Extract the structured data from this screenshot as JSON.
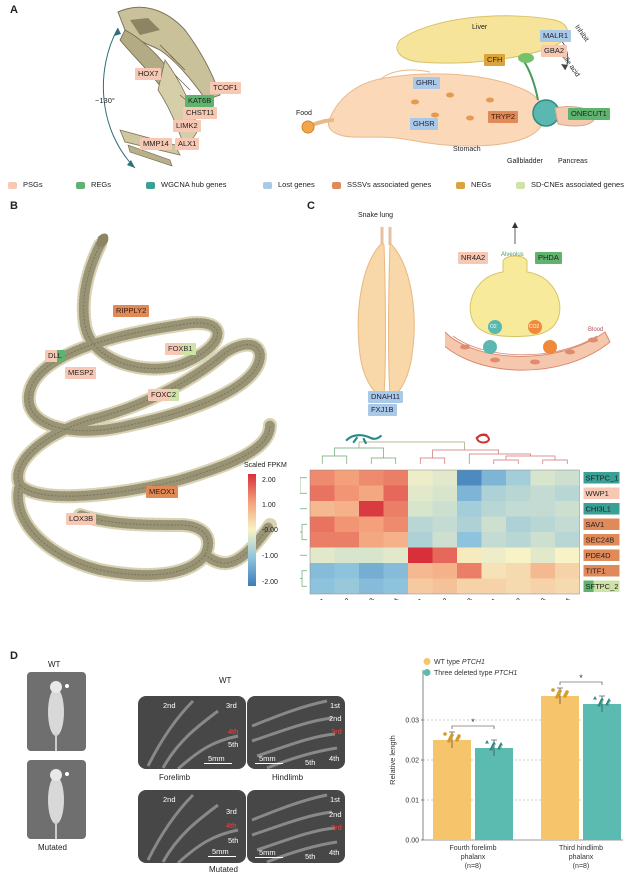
{
  "panels": {
    "a": "A",
    "b": "B",
    "c": "C",
    "d": "D"
  },
  "panelA": {
    "angle": "~130°",
    "skull_tags": [
      "HOX7",
      "TCOF1",
      "KAT6B",
      "CHST11",
      "LIMK2",
      "MMP14",
      "ALX1"
    ],
    "organ_labels": {
      "liver": "Liver",
      "food": "Food",
      "stomach": "Stomach",
      "gallbladder": "Gallbladder",
      "pancreas": "Pancreas",
      "inhibit": "Inhibit",
      "bile_acid": "Bile acid"
    },
    "organ_tags": {
      "malr1": "MALR1",
      "gba2": "GBA2",
      "cfh": "CFH",
      "ghrl": "GHRL",
      "ghsr": "GHSR",
      "tryp2": "TRYP2",
      "onecut1": "ONECUT1"
    }
  },
  "legend": [
    {
      "label": "PSGs",
      "color": "#f7c8b3"
    },
    {
      "label": "REGs",
      "color": "#5fb36e"
    },
    {
      "label": "WGCNA hub genes",
      "color": "#3a9f94"
    },
    {
      "label": "Lost genes",
      "color": "#a9c9e6"
    },
    {
      "label": "SSSVs associated genes",
      "color": "#e08a5a"
    },
    {
      "label": "NEGs",
      "color": "#d9a43b"
    },
    {
      "label": "SD-CNEs associated genes",
      "color": "#cfe3a6"
    }
  ],
  "panelB": {
    "tags": {
      "ripply2": "RIPPLY2",
      "dll": "DLL",
      "foxb1": "FOXB1",
      "mesp2": "MESP2",
      "foxc2": "FOXC2",
      "meox1": "MEOX1",
      "lox3b": "LOX3B"
    }
  },
  "panelC": {
    "lung_title": "Snake lung",
    "lung_tags": {
      "dnah11": "DNAH11",
      "fxj1b": "FXJ1B"
    },
    "alveolus": "Alveolus",
    "blood": "Blood",
    "nr4a2": "NR4A2",
    "phda": "PHDA",
    "o2": "O2",
    "co2": "CO2",
    "colorbar_title": "Scaled FPKM",
    "colorbar_ticks": [
      "2.00",
      "1.00",
      "-0.00",
      "-1.00",
      "-2.00"
    ]
  },
  "heatmap": {
    "rows": [
      {
        "name": "SFTPC_1",
        "cls": "hub"
      },
      {
        "name": "WWP1",
        "cls": "psg"
      },
      {
        "name": "CHI3L1",
        "cls": "hub"
      },
      {
        "name": "SAV1",
        "cls": "sssv"
      },
      {
        "name": "SEC24B",
        "cls": "sssv"
      },
      {
        "name": "PDE4D",
        "cls": "sssv"
      },
      {
        "name": "TITF1",
        "cls": "sssv"
      },
      {
        "name": "SFTPC_2",
        "cls": "sdcne"
      }
    ],
    "cols": [
      "Acar1",
      "Acar2",
      "Acar3",
      "Acar4",
      "Bmul1",
      "Bmul2",
      "Bmul3",
      "Pbar1",
      "Pbar2",
      "Pbar3",
      "Pbar4"
    ],
    "values": [
      [
        1.2,
        1.0,
        1.2,
        1.3,
        -0.1,
        -0.2,
        -1.8,
        -1.2,
        -0.8,
        -0.3,
        -0.4
      ],
      [
        1.4,
        1.1,
        0.9,
        1.5,
        -0.2,
        -0.3,
        -1.2,
        -0.7,
        -0.6,
        -0.5,
        -0.6
      ],
      [
        0.7,
        0.8,
        1.9,
        1.3,
        -0.3,
        -0.4,
        -0.8,
        -0.6,
        -0.5,
        -0.5,
        -0.4
      ],
      [
        1.4,
        1.1,
        1.0,
        1.2,
        -0.6,
        -0.5,
        -0.7,
        -0.4,
        -0.7,
        -0.6,
        -0.5
      ],
      [
        1.3,
        1.3,
        0.9,
        0.8,
        -0.7,
        -0.4,
        -1.0,
        -0.5,
        -0.6,
        -0.4,
        -0.6
      ],
      [
        -0.2,
        -0.3,
        -0.3,
        -0.2,
        2.0,
        1.5,
        0.1,
        -0.1,
        0.0,
        -0.2,
        0.0
      ],
      [
        -1.1,
        -1.0,
        -1.3,
        -1.1,
        0.7,
        0.8,
        1.3,
        0.2,
        0.3,
        0.7,
        0.4
      ],
      [
        -1.0,
        -0.9,
        -1.1,
        -1.0,
        0.5,
        0.6,
        0.4,
        0.4,
        0.3,
        0.4,
        0.3
      ]
    ]
  },
  "panelD": {
    "wt": "WT",
    "mutated": "Mutated",
    "forelimb": "Forelimb",
    "hindlimb": "Hindlimb",
    "scale": "5mm",
    "fore_digits": [
      "2nd",
      "3rd",
      "4th",
      "5th"
    ],
    "hind_digits": [
      "1st",
      "2nd",
      "3rd",
      "4th",
      "5th"
    ]
  },
  "chart_data": {
    "type": "bar",
    "categories": [
      "Fourth forelimb phalanx (n=8)",
      "Third hindlimb phalanx (n=8)"
    ],
    "category_lines": [
      [
        "Fourth forelimb",
        "phalanx",
        "(n=8)"
      ],
      [
        "Third hindlimb",
        "phalanx",
        "(n=8)"
      ]
    ],
    "series": [
      {
        "name": "WT type PTCH1",
        "values": [
          0.025,
          0.036
        ],
        "color": "#f6c46a"
      },
      {
        "name": "Three deleted type PTCH1",
        "values": [
          0.023,
          0.034
        ],
        "color": "#5bbbb0"
      }
    ],
    "legend_prefix": [
      "WT type ",
      "Three deleted type "
    ],
    "legend_gene": "PTCH1",
    "ylabel": "Relative length",
    "ylim": [
      0,
      0.04
    ],
    "yticks": [
      "0.00",
      "0.01",
      "0.02",
      "0.03"
    ],
    "significance": "*",
    "grid": "dashed-horizontal",
    "legend_position": "top-left"
  }
}
